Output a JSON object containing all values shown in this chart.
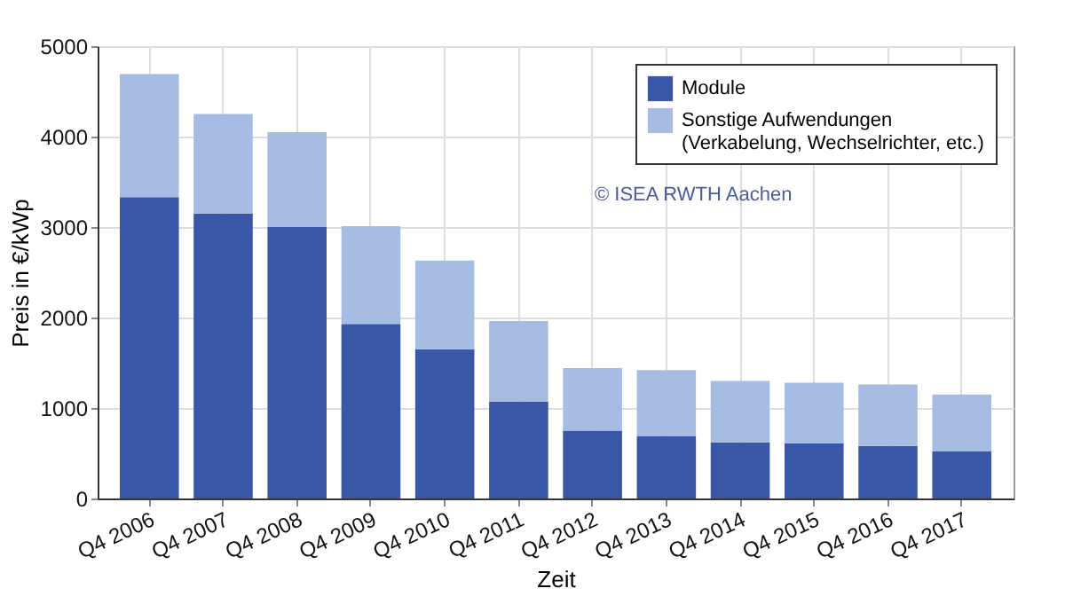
{
  "chart_data": {
    "type": "bar",
    "stacked": true,
    "xlabel": "Zeit",
    "ylabel": "Preis in €/kWp",
    "categories": [
      "Q4 2006",
      "Q4 2007",
      "Q4 2008",
      "Q4 2009",
      "Q4 2010",
      "Q4 2011",
      "Q4 2012",
      "Q4 2013",
      "Q4 2014",
      "Q4 2015",
      "Q4 2016",
      "Q4 2017"
    ],
    "series": [
      {
        "name": "Module",
        "color": "#3a56a6",
        "values": [
          3330,
          3150,
          3000,
          1930,
          1650,
          1070,
          750,
          690,
          620,
          610,
          580,
          520
        ]
      },
      {
        "name": "Sonstige Aufwendungen (Verkabelung, Wechselrichter, etc.)",
        "color": "#a7bce3",
        "values": [
          1360,
          1100,
          1050,
          1080,
          980,
          890,
          690,
          730,
          680,
          670,
          680,
          630
        ]
      }
    ],
    "ylim": [
      0,
      5000
    ],
    "yticks": [
      0,
      1000,
      2000,
      3000,
      4000,
      5000
    ],
    "grid": true,
    "legend": "top right",
    "annotations": [
      "© ISEA RWTH Aachen"
    ]
  }
}
